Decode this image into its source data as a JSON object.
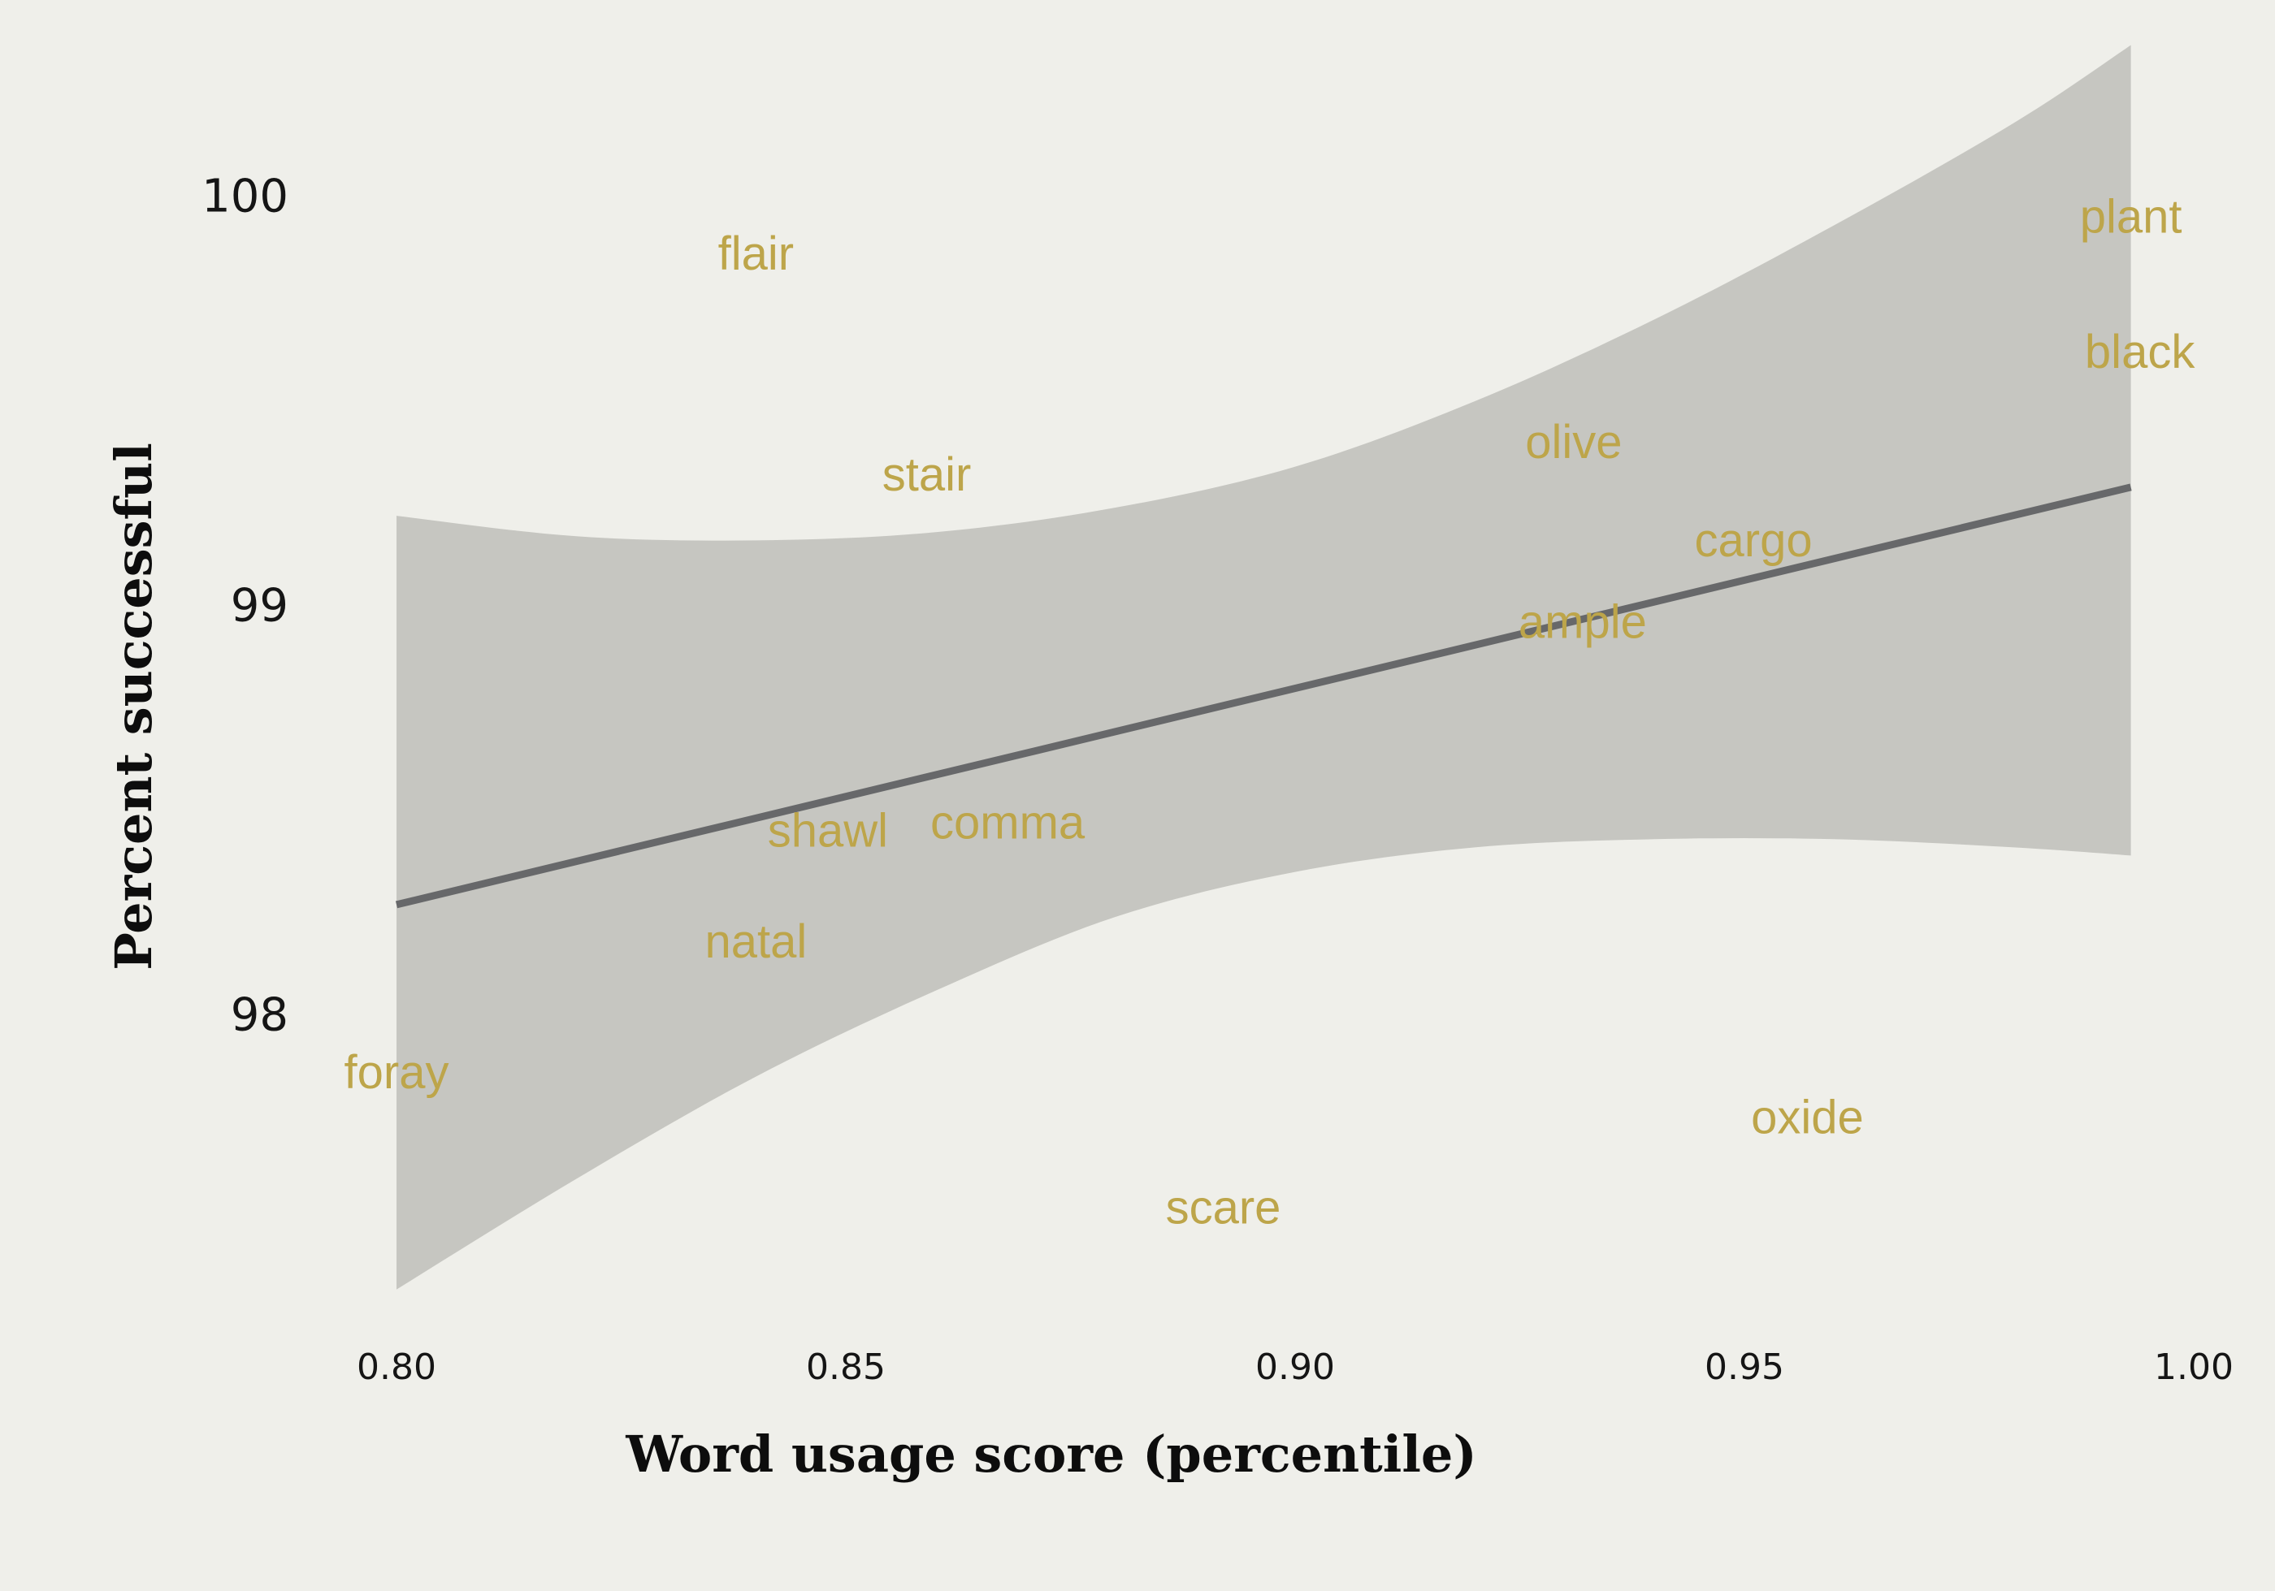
{
  "colors": {
    "background": "#efefea",
    "ribbon": "#c6c6c1",
    "trend_line": "#67686a",
    "point_label": "#bda54a",
    "text": "#111111"
  },
  "chart_data": {
    "type": "scatter",
    "marker": "text-label",
    "title": "",
    "xlabel": "Word usage score (percentile)",
    "ylabel": "Percent successful",
    "xlim": [
      0.79,
      1.0
    ],
    "ylim": [
      97.3,
      100.4
    ],
    "x_ticks": [
      0.8,
      0.85,
      0.9,
      0.95,
      1.0
    ],
    "x_tick_labels": [
      "0.80",
      "0.85",
      "0.90",
      "0.95",
      "1.00"
    ],
    "y_ticks": [
      98,
      99,
      100
    ],
    "y_tick_labels": [
      "98",
      "99",
      "100"
    ],
    "grid": false,
    "legend": "none",
    "points": [
      {
        "label": "flair",
        "x": 0.84,
        "y": 99.86
      },
      {
        "label": "plant",
        "x": 0.993,
        "y": 99.95
      },
      {
        "label": "black",
        "x": 0.994,
        "y": 99.62
      },
      {
        "label": "stair",
        "x": 0.859,
        "y": 99.32
      },
      {
        "label": "olive",
        "x": 0.931,
        "y": 99.4
      },
      {
        "label": "cargo",
        "x": 0.951,
        "y": 99.16
      },
      {
        "label": "ample",
        "x": 0.932,
        "y": 98.96
      },
      {
        "label": "shawl",
        "x": 0.848,
        "y": 98.45
      },
      {
        "label": "comma",
        "x": 0.868,
        "y": 98.47
      },
      {
        "label": "natal",
        "x": 0.84,
        "y": 98.18
      },
      {
        "label": "foray",
        "x": 0.8,
        "y": 97.86
      },
      {
        "label": "oxide",
        "x": 0.957,
        "y": 97.75
      },
      {
        "label": "scare",
        "x": 0.892,
        "y": 97.53
      }
    ],
    "trend_line": {
      "x": [
        0.8,
        0.993
      ],
      "y": [
        98.27,
        99.29
      ]
    },
    "confidence_band": {
      "x": [
        0.8,
        0.82,
        0.84,
        0.86,
        0.88,
        0.9,
        0.92,
        0.94,
        0.96,
        0.98,
        0.993
      ],
      "upper": [
        99.22,
        99.17,
        99.16,
        99.18,
        99.24,
        99.34,
        99.5,
        99.7,
        99.93,
        100.18,
        100.37
      ],
      "lower": [
        97.33,
        97.6,
        97.85,
        98.06,
        98.24,
        98.35,
        98.41,
        98.43,
        98.43,
        98.41,
        98.39
      ]
    }
  }
}
